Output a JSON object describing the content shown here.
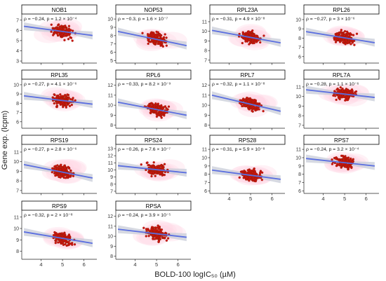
{
  "chart_data": {
    "type": "scatter",
    "ylabel": "Gene exp. (lcpm)",
    "xlabel": "BOLD-100 logIC₅₀ (µM)",
    "x_ticks": [
      4,
      5,
      6
    ],
    "xlim": [
      3.1,
      6.6
    ],
    "panels": [
      {
        "name": "NOB1",
        "stat": "ρ = −0.24, p = 1.2 × 10⁻⁴",
        "ylim": [
          2.8,
          7.6
        ],
        "y_ticks": [
          3,
          4,
          5,
          6,
          7
        ],
        "trend": [
          6.4,
          5.5
        ],
        "center": 5.9
      },
      {
        "name": "NOP53",
        "stat": "ρ = −0.3, p = 1.6 × 10⁻⁷",
        "ylim": [
          4.7,
          10.6
        ],
        "y_ticks": [
          5,
          6,
          7,
          8,
          9,
          10
        ],
        "trend": [
          8.5,
          6.8
        ],
        "center": 7.6
      },
      {
        "name": "RPL23A",
        "stat": "ρ = −0.31, p = 4.9 × 10⁻⁸",
        "ylim": [
          6.7,
          11.8
        ],
        "y_ticks": [
          7,
          8,
          9,
          10,
          11
        ],
        "trend": [
          10.1,
          8.8
        ],
        "center": 9.4
      },
      {
        "name": "RPL26",
        "stat": "ρ = −0.27, p = 3 × 10⁻⁶",
        "ylim": [
          5.3,
          10.6
        ],
        "y_ticks": [
          6,
          7,
          8,
          9,
          10
        ],
        "trend": [
          8.7,
          7.5
        ],
        "center": 8.1
      },
      {
        "name": "RPL35",
        "stat": "ρ = −0.27, p = 4.1 × 10⁻⁶",
        "ylim": [
          5.3,
          10.6
        ],
        "y_ticks": [
          6,
          7,
          8,
          9,
          10
        ],
        "trend": [
          8.8,
          7.9
        ],
        "center": 8.3
      },
      {
        "name": "RPL6",
        "stat": "ρ = −0.33, p = 8.2 × 10⁻⁹",
        "ylim": [
          7.7,
          12.6
        ],
        "y_ticks": [
          8,
          9,
          10,
          11,
          12
        ],
        "trend": [
          10.3,
          9.0
        ],
        "center": 9.6
      },
      {
        "name": "RPL7",
        "stat": "ρ = −0.32, p = 1.1 × 10⁻⁸",
        "ylim": [
          7.7,
          12.6
        ],
        "y_ticks": [
          8,
          9,
          10,
          11,
          12
        ],
        "trend": [
          11.0,
          9.4
        ],
        "center": 10.1
      },
      {
        "name": "RPL7A",
        "stat": "ρ = −0.28, p = 1.1 × 10⁻⁶",
        "ylim": [
          6.7,
          11.8
        ],
        "y_ticks": [
          7,
          8,
          9,
          10,
          11
        ],
        "trend": [
          10.7,
          9.9
        ],
        "center": 10.2
      },
      {
        "name": "RPS19",
        "stat": "ρ = −0.27, p = 2.8 × 10⁻⁶",
        "ylim": [
          6.7,
          11.8
        ],
        "y_ticks": [
          7,
          8,
          9,
          10,
          11
        ],
        "trend": [
          9.7,
          8.3
        ],
        "center": 9.0
      },
      {
        "name": "RPS24",
        "stat": "ρ = −0.26, p = 7.6 × 10⁻⁷",
        "ylim": [
          6.7,
          13.6
        ],
        "y_ticks": [
          7,
          8,
          9,
          10,
          11,
          12,
          13
        ],
        "trend": [
          10.6,
          9.6
        ],
        "center": 10.0
      },
      {
        "name": "RPS28",
        "stat": "ρ = −0.31, p = 5.9 × 10⁻⁸",
        "ylim": [
          5.7,
          11.6
        ],
        "y_ticks": [
          6,
          7,
          8,
          9,
          10,
          11
        ],
        "trend": [
          8.5,
          7.4
        ],
        "center": 7.9
      },
      {
        "name": "RPS7",
        "stat": "ρ = −0.24, p = 3.2 × 10⁻⁴",
        "ylim": [
          5.7,
          11.6
        ],
        "y_ticks": [
          6,
          7,
          8,
          9,
          10,
          11
        ],
        "trend": [
          9.9,
          9.0
        ],
        "center": 9.4
      },
      {
        "name": "RPS9",
        "stat": "ρ = −0.32, p = 2 × 10⁻⁸",
        "ylim": [
          7.3,
          11.6
        ],
        "y_ticks": [
          8,
          9,
          10,
          11
        ],
        "trend": [
          9.7,
          8.7
        ],
        "center": 9.1
      },
      {
        "name": "RPSA",
        "stat": "ρ = −0.24, p = 3.9 × 10⁻⁵",
        "ylim": [
          7.7,
          12.6
        ],
        "y_ticks": [
          8,
          9,
          10,
          11,
          12
        ],
        "trend": [
          10.7,
          9.9
        ],
        "center": 10.3
      }
    ]
  },
  "colors": {
    "point": "#d01010",
    "point_edge": "#7a2a00",
    "trend": "#5a6ee0",
    "band": "#c8ccd8",
    "density": "#ffd6e6",
    "axis": "#222222",
    "strip_bg": "#ffffff",
    "strip_border": "#000000"
  }
}
